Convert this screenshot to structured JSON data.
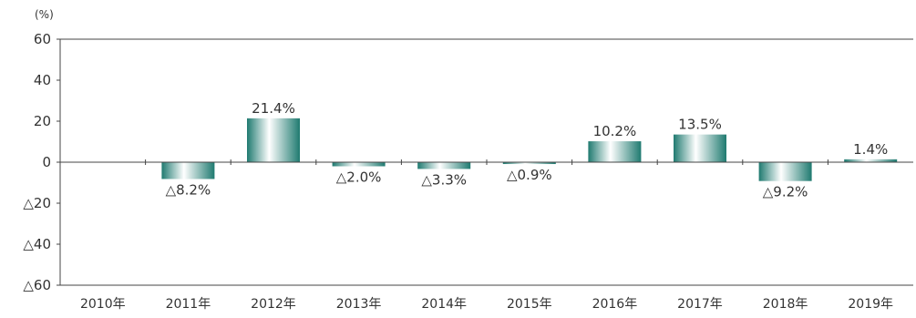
{
  "chart_data": {
    "type": "bar",
    "title": "",
    "xlabel": "",
    "ylabel": "",
    "unit": "(%)",
    "ylim": [
      -60,
      60
    ],
    "yticks": [
      {
        "value": 60,
        "label": "60"
      },
      {
        "value": 40,
        "label": "40"
      },
      {
        "value": 20,
        "label": "20"
      },
      {
        "value": 0,
        "label": "0"
      },
      {
        "value": -20,
        "label": "△20"
      },
      {
        "value": -40,
        "label": "△40"
      },
      {
        "value": -60,
        "label": "△60"
      }
    ],
    "categories": [
      "2010年",
      "2011年",
      "2012年",
      "2013年",
      "2014年",
      "2015年",
      "2016年",
      "2017年",
      "2018年",
      "2019年"
    ],
    "values": [
      null,
      -8.2,
      21.4,
      -2.0,
      -3.3,
      -0.9,
      10.2,
      13.5,
      -9.2,
      1.4
    ],
    "data_labels": [
      "",
      "△8.2%",
      "21.4%",
      "△2.0%",
      "△3.3%",
      "△0.9%",
      "10.2%",
      "13.5%",
      "△9.2%",
      "1.4%"
    ],
    "grid": false,
    "legend": "none",
    "colors": {
      "bar_dark": "#1f7a70",
      "bar_light": "#ffffff",
      "axis": "#444444",
      "text": "#333333"
    }
  }
}
